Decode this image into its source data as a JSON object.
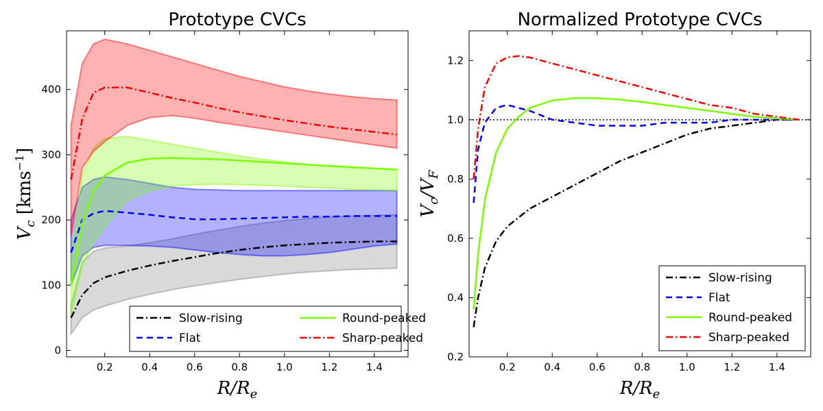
{
  "chart_data": [
    {
      "type": "line",
      "title": "Prototype CVCs",
      "xlabel": "R/R_e",
      "ylabel": "V_c [kms^-1]",
      "xlim": [
        0.03,
        1.55
      ],
      "ylim": [
        -10,
        490
      ],
      "xticks": [
        "0.2",
        "0.4",
        "0.6",
        "0.8",
        "1.0",
        "1.2",
        "1.4"
      ],
      "yticks": [
        "0",
        "100",
        "200",
        "300",
        "400"
      ],
      "x": [
        0.05,
        0.1,
        0.15,
        0.2,
        0.3,
        0.4,
        0.5,
        0.6,
        0.7,
        0.8,
        0.9,
        1.0,
        1.1,
        1.2,
        1.3,
        1.4,
        1.5
      ],
      "series": [
        {
          "name": "Slow-rising",
          "color": "#000000",
          "style": "dashdot",
          "values": [
            50,
            85,
            103,
            112,
            122,
            130,
            137,
            143,
            149,
            154,
            158,
            161,
            163,
            165,
            166,
            167,
            167
          ],
          "band_lower": [
            25,
            50,
            62,
            68,
            78,
            86,
            93,
            99,
            104,
            109,
            113,
            117,
            120,
            122,
            124,
            125,
            126
          ],
          "band_upper": [
            70,
            135,
            152,
            157,
            160,
            165,
            171,
            178,
            184,
            190,
            195,
            199,
            202,
            205,
            206,
            207,
            208
          ],
          "band_color": "#808080"
        },
        {
          "name": "Flat",
          "color": "#0000ff",
          "style": "dashed",
          "values": [
            150,
            200,
            210,
            214,
            211,
            208,
            204,
            201,
            201,
            202,
            203,
            204,
            205,
            205,
            206,
            206,
            206
          ],
          "band_lower": [
            100,
            145,
            158,
            161,
            161,
            160,
            158,
            154,
            150,
            147,
            145,
            145,
            147,
            150,
            155,
            160,
            163
          ],
          "band_upper": [
            200,
            250,
            262,
            266,
            262,
            256,
            250,
            247,
            246,
            245,
            245,
            245,
            245,
            245,
            245,
            245,
            245
          ],
          "band_color": "#0000ff"
        },
        {
          "name": "Round-peaked",
          "color": "#7cfc00",
          "style": "solid",
          "values": [
            100,
            195,
            245,
            268,
            288,
            294,
            295,
            294,
            293,
            291,
            289,
            287,
            285,
            283,
            281,
            279,
            277
          ],
          "band_lower": [
            55,
            130,
            165,
            190,
            230,
            245,
            252,
            254,
            255,
            254,
            253,
            252,
            250,
            249,
            247,
            246,
            245
          ],
          "band_upper": [
            145,
            270,
            310,
            325,
            328,
            322,
            316,
            310,
            304,
            298,
            293,
            289,
            285,
            282,
            280,
            279,
            278
          ],
          "band_color": "#7cfc00"
        },
        {
          "name": "Sharp-peaked",
          "color": "#ff0000",
          "style": "dashdot",
          "values": [
            262,
            355,
            395,
            403,
            403,
            395,
            387,
            380,
            372,
            365,
            359,
            353,
            348,
            343,
            339,
            335,
            331
          ],
          "band_lower": [
            175,
            280,
            305,
            320,
            345,
            357,
            360,
            356,
            350,
            345,
            340,
            335,
            330,
            325,
            320,
            315,
            310
          ],
          "band_upper": [
            345,
            440,
            470,
            477,
            470,
            460,
            450,
            440,
            430,
            420,
            412,
            404,
            398,
            393,
            389,
            386,
            384
          ],
          "band_color": "#ff0000"
        }
      ],
      "legend": {
        "location": "lower-right",
        "columns": 2
      }
    },
    {
      "type": "line",
      "title": "Normalized Prototype CVCs",
      "xlabel": "R/R_e",
      "ylabel": "V_c/V_F",
      "xlim": [
        0.03,
        1.55
      ],
      "ylim": [
        0.2,
        1.3
      ],
      "xticks": [
        "0.2",
        "0.4",
        "0.6",
        "0.8",
        "1.0",
        "1.2",
        "1.4"
      ],
      "yticks": [
        "0.2",
        "0.4",
        "0.6",
        "0.8",
        "1.0",
        "1.2"
      ],
      "reference_line": {
        "y": 1.0,
        "style": "dotted",
        "color": "#000000"
      },
      "x": [
        0.05,
        0.07,
        0.1,
        0.15,
        0.2,
        0.25,
        0.3,
        0.4,
        0.5,
        0.6,
        0.7,
        0.8,
        0.9,
        1.0,
        1.1,
        1.2,
        1.3,
        1.4,
        1.5
      ],
      "series": [
        {
          "name": "Slow-rising",
          "color": "#000000",
          "style": "dashdot",
          "values": [
            0.3,
            0.4,
            0.5,
            0.59,
            0.64,
            0.67,
            0.7,
            0.74,
            0.78,
            0.82,
            0.86,
            0.89,
            0.92,
            0.95,
            0.97,
            0.98,
            0.99,
            1.0,
            1.0
          ]
        },
        {
          "name": "Flat",
          "color": "#0000ff",
          "style": "dashed",
          "values": [
            0.72,
            0.9,
            0.99,
            1.04,
            1.05,
            1.04,
            1.03,
            1.0,
            0.99,
            0.98,
            0.98,
            0.98,
            0.99,
            0.99,
            0.99,
            1.0,
            1.0,
            1.0,
            1.0
          ]
        },
        {
          "name": "Round-peaked",
          "color": "#7cfc00",
          "style": "solid",
          "values": [
            0.36,
            0.55,
            0.73,
            0.89,
            0.97,
            1.01,
            1.04,
            1.065,
            1.073,
            1.073,
            1.068,
            1.06,
            1.05,
            1.04,
            1.03,
            1.02,
            1.01,
            1.005,
            1.0
          ]
        },
        {
          "name": "Sharp-peaked",
          "color": "#ff0000",
          "style": "dashdot",
          "values": [
            0.8,
            0.97,
            1.11,
            1.19,
            1.21,
            1.215,
            1.21,
            1.19,
            1.17,
            1.15,
            1.13,
            1.11,
            1.09,
            1.07,
            1.05,
            1.04,
            1.02,
            1.01,
            1.0
          ]
        }
      ],
      "legend": {
        "location": "lower-right",
        "columns": 1
      }
    }
  ]
}
